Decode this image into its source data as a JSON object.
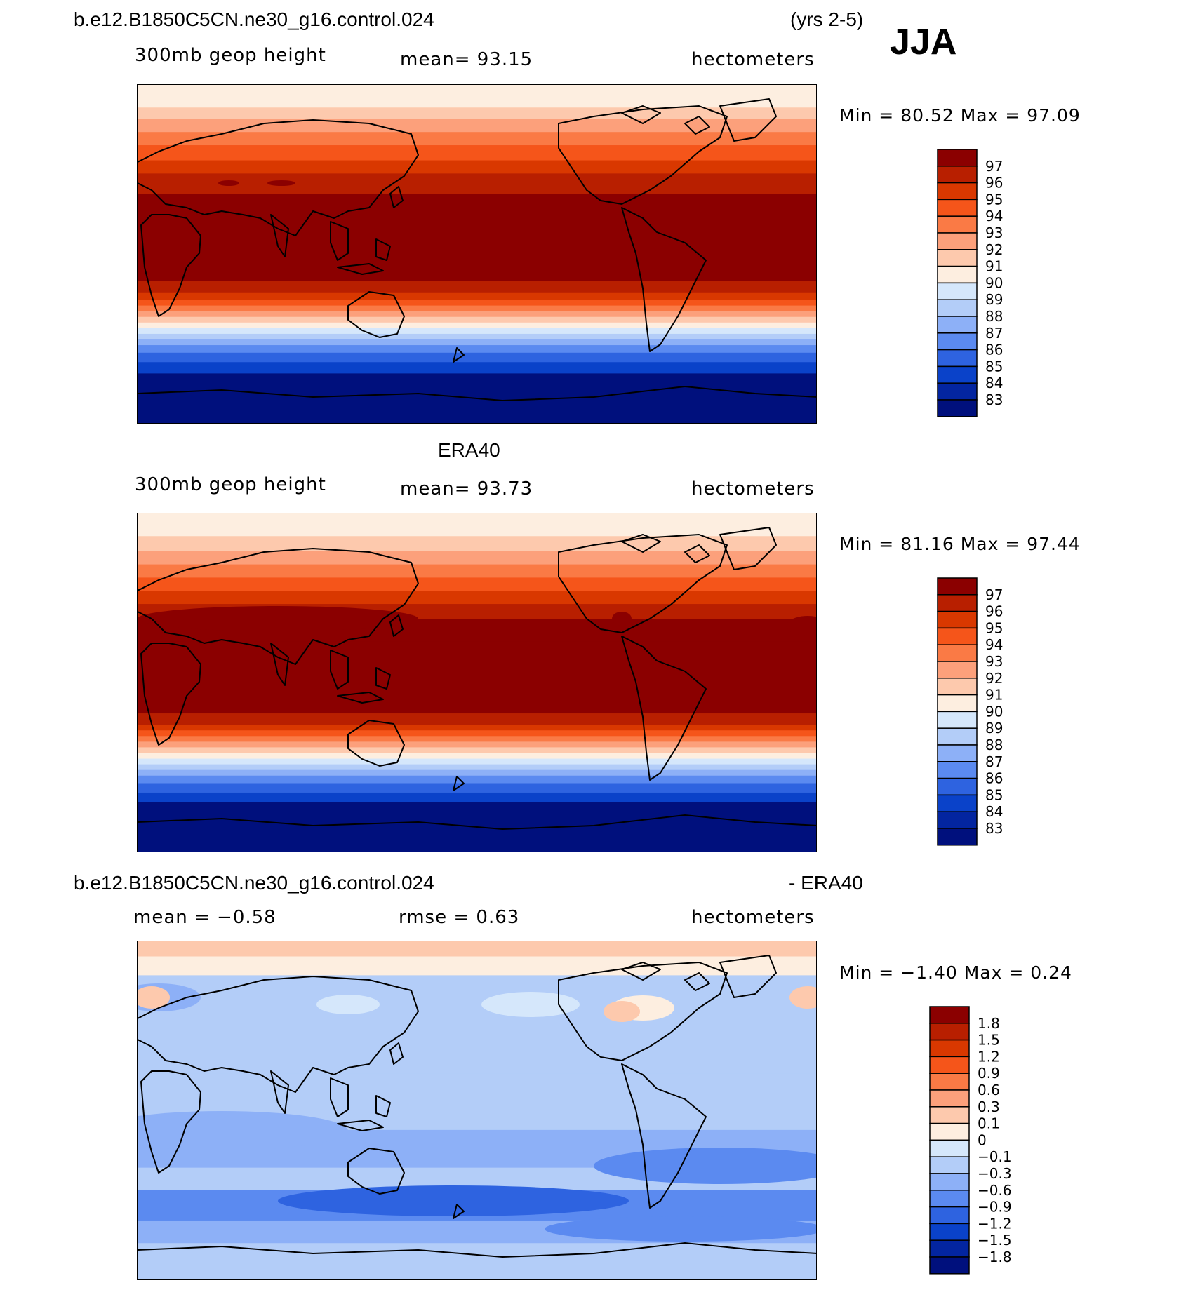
{
  "header": {
    "case_name": "b.e12.B1850C5CN.ne30_g16.control.024",
    "years": "(yrs 2-5)",
    "season": "JJA"
  },
  "colors": {
    "map_border": "#000000",
    "coast": "#000000"
  },
  "panels": [
    {
      "name": "model",
      "title_left": "",
      "title_center": "",
      "variable": "300mb geop height",
      "stat1": "mean=  93.15",
      "stat2": "",
      "units": "hectometers",
      "minmax": "Min =  80.52 Max =  97.09",
      "legend_labels": [
        "97",
        "96",
        "95",
        "94",
        "93",
        "92",
        "91",
        "90",
        "89",
        "88",
        "87",
        "86",
        "85",
        "84",
        "83"
      ],
      "legend_colors": [
        "#8b0000",
        "#b81f00",
        "#d93800",
        "#f5551a",
        "#fa7a45",
        "#fca07b",
        "#fdc9ad",
        "#fdeee0",
        "#d5e7fb",
        "#b3cdf8",
        "#8db0f7",
        "#5b8af0",
        "#2e63e0",
        "#0a42c9",
        "#0325a0",
        "#00107d"
      ],
      "bands": [
        {
          "lat_from": 90,
          "lat_to": 78,
          "value": "89-90"
        },
        {
          "lat_from": 78,
          "lat_to": 72,
          "value": "90-91"
        },
        {
          "lat_from": 72,
          "lat_to": 65,
          "value": "91-92"
        },
        {
          "lat_from": 65,
          "lat_to": 58,
          "value": "92-93"
        },
        {
          "lat_from": 58,
          "lat_to": 50,
          "value": "93-94"
        },
        {
          "lat_from": 50,
          "lat_to": 43,
          "value": "94-95"
        },
        {
          "lat_from": 43,
          "lat_to": 32,
          "value": "95-96"
        },
        {
          "lat_from": 32,
          "lat_to": -14,
          "value": "96-97"
        },
        {
          "lat_from": -14,
          "lat_to": -20,
          "value": "95-96"
        },
        {
          "lat_from": -20,
          "lat_to": -24,
          "value": "94-95"
        },
        {
          "lat_from": -24,
          "lat_to": -27,
          "value": "93-94"
        },
        {
          "lat_from": -27,
          "lat_to": -30,
          "value": "92-93"
        },
        {
          "lat_from": -30,
          "lat_to": -33,
          "value": "91-92"
        },
        {
          "lat_from": -33,
          "lat_to": -36,
          "value": "90-91"
        },
        {
          "lat_from": -36,
          "lat_to": -39,
          "value": "89-90"
        },
        {
          "lat_from": -39,
          "lat_to": -42,
          "value": "88-89"
        },
        {
          "lat_from": -42,
          "lat_to": -45,
          "value": "87-88"
        },
        {
          "lat_from": -45,
          "lat_to": -48,
          "value": "86-87"
        },
        {
          "lat_from": -48,
          "lat_to": -52,
          "value": "85-86"
        },
        {
          "lat_from": -52,
          "lat_to": -57,
          "value": "84-85"
        },
        {
          "lat_from": -57,
          "lat_to": -63,
          "value": "83-84"
        },
        {
          "lat_from": -63,
          "lat_to": -90,
          "value": "<83"
        }
      ]
    },
    {
      "name": "obs",
      "title_left": "",
      "title_center": "ERA40",
      "variable": "300mb geop height",
      "stat1": "mean=  93.73",
      "stat2": "",
      "units": "hectometers",
      "minmax": "Min =  81.16 Max =  97.44",
      "legend_labels": [
        "97",
        "96",
        "95",
        "94",
        "93",
        "92",
        "91",
        "90",
        "89",
        "88",
        "87",
        "86",
        "85",
        "84",
        "83"
      ],
      "legend_colors": [
        "#8b0000",
        "#b81f00",
        "#d93800",
        "#f5551a",
        "#fa7a45",
        "#fca07b",
        "#fdc9ad",
        "#fdeee0",
        "#d5e7fb",
        "#b3cdf8",
        "#8db0f7",
        "#5b8af0",
        "#2e63e0",
        "#0a42c9",
        "#0325a0",
        "#00107d"
      ],
      "bands": [
        {
          "lat_from": 90,
          "lat_to": 78,
          "value": "89-90"
        },
        {
          "lat_from": 78,
          "lat_to": 70,
          "value": "90-91"
        },
        {
          "lat_from": 70,
          "lat_to": 63,
          "value": "91-92"
        },
        {
          "lat_from": 63,
          "lat_to": 56,
          "value": "92-93"
        },
        {
          "lat_from": 56,
          "lat_to": 49,
          "value": "93-94"
        },
        {
          "lat_from": 49,
          "lat_to": 42,
          "value": "94-95"
        },
        {
          "lat_from": 42,
          "lat_to": 34,
          "value": "95-96"
        },
        {
          "lat_from": 34,
          "lat_to": 22,
          "value": "96-97"
        },
        {
          "lat_from": 22,
          "lat_to": -16,
          "value": "96-97"
        },
        {
          "lat_from": -16,
          "lat_to": -22,
          "value": "95-96"
        },
        {
          "lat_from": -22,
          "lat_to": -25,
          "value": "94-95"
        },
        {
          "lat_from": -25,
          "lat_to": -28,
          "value": "93-94"
        },
        {
          "lat_from": -28,
          "lat_to": -31,
          "value": "92-93"
        },
        {
          "lat_from": -31,
          "lat_to": -34,
          "value": "91-92"
        },
        {
          "lat_from": -34,
          "lat_to": -37,
          "value": "90-91"
        },
        {
          "lat_from": -37,
          "lat_to": -40,
          "value": "89-90"
        },
        {
          "lat_from": -40,
          "lat_to": -43,
          "value": "88-89"
        },
        {
          "lat_from": -43,
          "lat_to": -46,
          "value": "87-88"
        },
        {
          "lat_from": -46,
          "lat_to": -49,
          "value": "86-87"
        },
        {
          "lat_from": -49,
          "lat_to": -53,
          "value": "85-86"
        },
        {
          "lat_from": -53,
          "lat_to": -58,
          "value": "84-85"
        },
        {
          "lat_from": -58,
          "lat_to": -63,
          "value": "83-84"
        },
        {
          "lat_from": -63,
          "lat_to": -90,
          "value": "<83"
        }
      ]
    },
    {
      "name": "diff",
      "title_left": "b.e12.B1850C5CN.ne30_g16.control.024",
      "title_center": "- ERA40",
      "variable": "",
      "stat1": "mean =  −0.58",
      "stat2": "rmse =   0.63",
      "units": "hectometers",
      "minmax": "Min =  −1.40 Max =   0.24",
      "legend_labels": [
        "1.8",
        "1.5",
        "1.2",
        "0.9",
        "0.6",
        "0.3",
        "0.1",
        "0",
        "−0.1",
        "−0.3",
        "−0.6",
        "−0.9",
        "−1.2",
        "−1.5",
        "−1.8"
      ],
      "legend_colors": [
        "#8b0000",
        "#b81f00",
        "#d93800",
        "#f5551a",
        "#fa7a45",
        "#fca07b",
        "#fdc9ad",
        "#fdeee0",
        "#d5e7fb",
        "#b3cdf8",
        "#8db0f7",
        "#5b8af0",
        "#2e63e0",
        "#0a42c9",
        "#0325a0",
        "#00107d"
      ],
      "bands": [
        {
          "lat_from": 90,
          "lat_to": 82,
          "value": "0-0.1"
        },
        {
          "lat_from": 82,
          "lat_to": 72,
          "value": "-0.1-0"
        },
        {
          "lat_from": 72,
          "lat_to": 20,
          "value": "-0.6--0.3"
        },
        {
          "lat_from": 20,
          "lat_to": -10,
          "value": "-0.6--0.3"
        },
        {
          "lat_from": -10,
          "lat_to": -30,
          "value": "-0.9--0.6"
        },
        {
          "lat_from": -30,
          "lat_to": -42,
          "value": "-0.6--0.3"
        },
        {
          "lat_from": -42,
          "lat_to": -58,
          "value": "-1.2--0.9"
        },
        {
          "lat_from": -58,
          "lat_to": -70,
          "value": "-0.9--0.6"
        },
        {
          "lat_from": -70,
          "lat_to": -90,
          "value": "-0.6--0.3"
        }
      ]
    }
  ]
}
